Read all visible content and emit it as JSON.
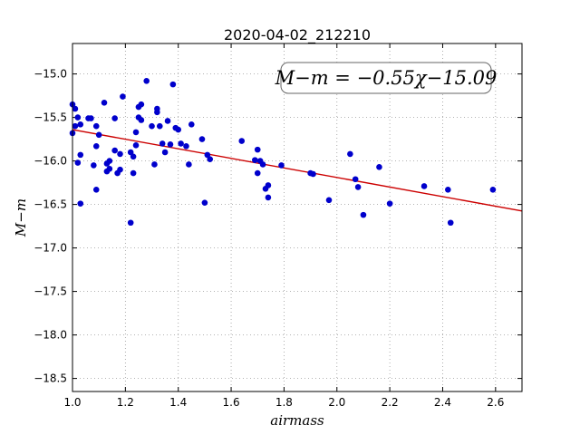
{
  "chart_data": {
    "type": "scatter",
    "title": "2020-04-02_212210",
    "xlabel": "airmass",
    "ylabel": "M−m",
    "xlim": [
      1.0,
      2.7
    ],
    "ylim": [
      -18.65,
      -14.65
    ],
    "y_inverted": true,
    "grid": true,
    "xticks": [
      1.0,
      1.2,
      1.4,
      1.6,
      1.8,
      2.0,
      2.2,
      2.4,
      2.6
    ],
    "xtick_labels": [
      "1.0",
      "1.2",
      "1.4",
      "1.6",
      "1.8",
      "2.0",
      "2.2",
      "2.4",
      "2.6"
    ],
    "yticks": [
      -15.0,
      -15.5,
      -16.0,
      -16.5,
      -17.0,
      -17.5,
      -18.0,
      -18.5
    ],
    "ytick_labels": [
      "−15.0",
      "−15.5",
      "−16.0",
      "−16.5",
      "−17.0",
      "−17.5",
      "−18.0",
      "−18.5"
    ],
    "annotation": "M−m = −0.55χ−15.09",
    "fit": {
      "slope": -0.55,
      "intercept": -15.09,
      "color": "#cc0000"
    },
    "marker_color": "#0000cc",
    "x": [
      1.0,
      1.0,
      1.01,
      1.01,
      1.02,
      1.02,
      1.03,
      1.03,
      1.03,
      1.06,
      1.07,
      1.08,
      1.09,
      1.09,
      1.09,
      1.1,
      1.12,
      1.13,
      1.13,
      1.14,
      1.14,
      1.16,
      1.16,
      1.17,
      1.18,
      1.18,
      1.19,
      1.22,
      1.22,
      1.23,
      1.23,
      1.24,
      1.24,
      1.25,
      1.25,
      1.26,
      1.26,
      1.28,
      1.3,
      1.31,
      1.32,
      1.32,
      1.33,
      1.34,
      1.35,
      1.36,
      1.37,
      1.38,
      1.39,
      1.4,
      1.41,
      1.43,
      1.44,
      1.45,
      1.49,
      1.5,
      1.51,
      1.52,
      1.64,
      1.69,
      1.7,
      1.7,
      1.71,
      1.72,
      1.73,
      1.74,
      1.74,
      1.79,
      1.9,
      1.91,
      1.97,
      2.05,
      2.07,
      2.08,
      2.1,
      2.16,
      2.2,
      2.33,
      2.42,
      2.43,
      2.59
    ],
    "y": [
      -15.35,
      -15.68,
      -15.4,
      -15.6,
      -15.5,
      -16.02,
      -15.58,
      -15.93,
      -16.49,
      -15.51,
      -15.51,
      -16.05,
      -15.6,
      -15.83,
      -16.33,
      -15.7,
      -15.33,
      -16.03,
      -16.12,
      -16.0,
      -16.09,
      -15.51,
      -15.88,
      -16.14,
      -16.1,
      -15.92,
      -15.26,
      -15.9,
      -16.71,
      -15.95,
      -16.14,
      -15.82,
      -15.67,
      -15.38,
      -15.5,
      -15.35,
      -15.53,
      -15.08,
      -15.6,
      -16.04,
      -15.4,
      -15.44,
      -15.6,
      -15.8,
      -15.9,
      -15.54,
      -15.81,
      -15.12,
      -15.62,
      -15.64,
      -15.8,
      -15.83,
      -16.04,
      -15.58,
      -15.75,
      -16.48,
      -15.93,
      -15.98,
      -15.77,
      -15.99,
      -15.87,
      -16.14,
      -16.0,
      -16.04,
      -16.32,
      -16.28,
      -16.42,
      -16.05,
      -16.14,
      -16.15,
      -16.45,
      -15.92,
      -16.21,
      -16.3,
      -16.62,
      -16.07,
      -16.49,
      -16.29,
      -16.33,
      -16.71,
      -16.33
    ]
  }
}
